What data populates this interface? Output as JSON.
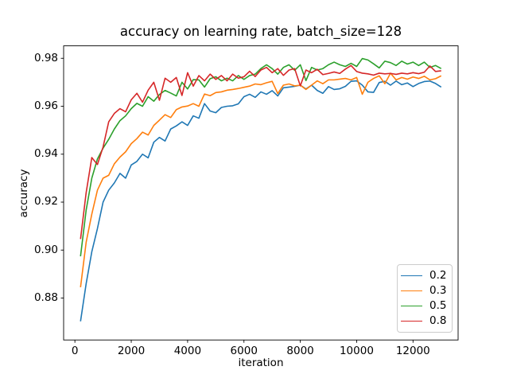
{
  "chart_data": {
    "type": "line",
    "title": "accuracy on learning rate, batch_size=128",
    "xlabel": "iteration",
    "ylabel": "accuracy",
    "grid": false,
    "legend_position": "lower right",
    "xlim": [
      -400,
      13600
    ],
    "ylim": [
      0.8625,
      0.9852
    ],
    "xticks": [
      0,
      2000,
      4000,
      6000,
      8000,
      10000,
      12000
    ],
    "yticks": [
      0.88,
      0.9,
      0.92,
      0.94,
      0.96,
      0.98
    ],
    "frame_color": "#000000",
    "x": [
      200,
      400,
      600,
      800,
      1000,
      1200,
      1400,
      1600,
      1800,
      2000,
      2200,
      2400,
      2600,
      2800,
      3000,
      3200,
      3400,
      3600,
      3800,
      4000,
      4200,
      4400,
      4600,
      4800,
      5000,
      5200,
      5400,
      5600,
      5800,
      6000,
      6200,
      6400,
      6600,
      6800,
      7000,
      7200,
      7400,
      7600,
      7800,
      8000,
      8200,
      8400,
      8600,
      8800,
      9000,
      9200,
      9400,
      9600,
      9800,
      10000,
      10200,
      10400,
      10600,
      10800,
      11000,
      11200,
      11400,
      11600,
      11800,
      12000,
      12200,
      12400,
      12600,
      12800,
      13000
    ],
    "series": [
      {
        "name": "0.2",
        "color": "#1f77b4",
        "values": [
          0.8703,
          0.886,
          0.8993,
          0.909,
          0.92,
          0.925,
          0.928,
          0.932,
          0.93,
          0.9355,
          0.937,
          0.94,
          0.9385,
          0.945,
          0.947,
          0.9455,
          0.9505,
          0.9518,
          0.9535,
          0.952,
          0.956,
          0.955,
          0.9611,
          0.958,
          0.9573,
          0.9595,
          0.96,
          0.9602,
          0.961,
          0.964,
          0.965,
          0.9637,
          0.966,
          0.965,
          0.9665,
          0.9643,
          0.9677,
          0.968,
          0.9683,
          0.9688,
          0.9672,
          0.9688,
          0.9666,
          0.9654,
          0.9682,
          0.967,
          0.9673,
          0.9683,
          0.9704,
          0.9706,
          0.9688,
          0.966,
          0.9658,
          0.9699,
          0.9704,
          0.9688,
          0.9705,
          0.969,
          0.9697,
          0.9682,
          0.9695,
          0.9703,
          0.9705,
          0.9695,
          0.968
        ]
      },
      {
        "name": "0.3",
        "color": "#ff7f0e",
        "values": [
          0.8845,
          0.9033,
          0.915,
          0.925,
          0.93,
          0.9312,
          0.936,
          0.9388,
          0.941,
          0.9444,
          0.9465,
          0.9492,
          0.948,
          0.952,
          0.9542,
          0.9565,
          0.9553,
          0.9586,
          0.9597,
          0.9601,
          0.9611,
          0.96,
          0.9651,
          0.9644,
          0.9657,
          0.966,
          0.9667,
          0.967,
          0.9674,
          0.9679,
          0.9684,
          0.9693,
          0.969,
          0.9698,
          0.9704,
          0.9653,
          0.9688,
          0.9693,
          0.9685,
          0.9688,
          0.967,
          0.9688,
          0.9706,
          0.9694,
          0.971,
          0.971,
          0.9713,
          0.9716,
          0.971,
          0.972,
          0.965,
          0.97,
          0.9716,
          0.9727,
          0.9694,
          0.9738,
          0.971,
          0.972,
          0.9713,
          0.9722,
          0.9716,
          0.9725,
          0.971,
          0.9715,
          0.9727
        ]
      },
      {
        "name": "0.5",
        "color": "#2ca02c",
        "values": [
          0.8974,
          0.9167,
          0.93,
          0.938,
          0.9425,
          0.9462,
          0.9505,
          0.954,
          0.956,
          0.959,
          0.9612,
          0.96,
          0.964,
          0.9621,
          0.9649,
          0.9666,
          0.9655,
          0.9643,
          0.97,
          0.9672,
          0.9711,
          0.971,
          0.968,
          0.9715,
          0.9723,
          0.9706,
          0.9717,
          0.9706,
          0.9728,
          0.9712,
          0.9728,
          0.9734,
          0.9757,
          0.9773,
          0.9757,
          0.9734,
          0.9762,
          0.9773,
          0.975,
          0.9773,
          0.9707,
          0.9762,
          0.9751,
          0.9757,
          0.9773,
          0.9784,
          0.9773,
          0.9766,
          0.9779,
          0.9766,
          0.9799,
          0.9793,
          0.9777,
          0.976,
          0.9788,
          0.9782,
          0.977,
          0.9788,
          0.9776,
          0.9784,
          0.977,
          0.9784,
          0.9762,
          0.977,
          0.9757
        ]
      },
      {
        "name": "0.8",
        "color": "#d62728",
        "values": [
          0.9046,
          0.924,
          0.9386,
          0.9357,
          0.943,
          0.9535,
          0.957,
          0.959,
          0.9577,
          0.9627,
          0.9654,
          0.9617,
          0.9667,
          0.97,
          0.9625,
          0.9717,
          0.97,
          0.972,
          0.9645,
          0.974,
          0.9684,
          0.9728,
          0.9706,
          0.9734,
          0.9712,
          0.9728,
          0.9706,
          0.9734,
          0.9717,
          0.9723,
          0.9746,
          0.9724,
          0.9751,
          0.9762,
          0.974,
          0.9757,
          0.9729,
          0.9751,
          0.9757,
          0.9685,
          0.9751,
          0.974,
          0.9754,
          0.9732,
          0.9737,
          0.9743,
          0.9737,
          0.9755,
          0.977,
          0.9745,
          0.9738,
          0.9735,
          0.973,
          0.9738,
          0.9735,
          0.9737,
          0.9733,
          0.9738,
          0.9735,
          0.974,
          0.9736,
          0.9742,
          0.9768,
          0.9745,
          0.9748
        ]
      }
    ]
  }
}
